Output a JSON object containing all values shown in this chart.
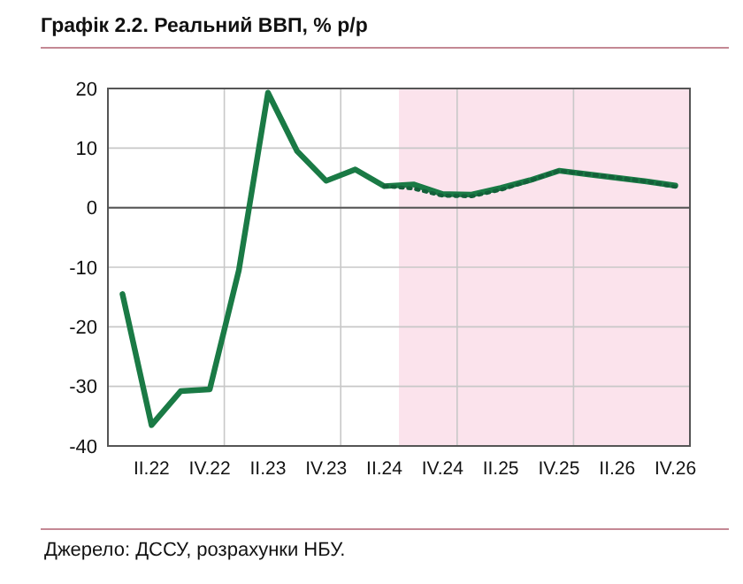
{
  "chart_data": {
    "type": "line",
    "title": "Графік 2.2. Реальний ВВП, % р/р",
    "categories": [
      null,
      "II.22",
      null,
      "IV.22",
      null,
      "II.23",
      null,
      "IV.23",
      null,
      "II.24",
      null,
      "IV.24",
      null,
      "II.25",
      null,
      "IV.25",
      null,
      "II.26",
      null,
      "IV.26"
    ],
    "series": [
      {
        "color": "#1a7a45",
        "line_style": "solid",
        "values": [
          -14.5,
          -36.5,
          -30.8,
          -30.5,
          -10.5,
          19.3,
          9.5,
          4.5,
          6.4,
          3.6,
          3.9,
          2.3,
          2.2,
          3.3,
          4.6,
          6.2,
          5.6,
          5.0,
          4.4,
          3.7
        ]
      },
      {
        "color": "#14603a",
        "line_style": "dotted",
        "values": [
          null,
          null,
          null,
          null,
          null,
          null,
          null,
          null,
          null,
          3.6,
          3.2,
          2.0,
          1.9,
          3.0,
          4.5,
          6.2,
          5.6,
          5.0,
          4.4,
          3.5
        ]
      }
    ],
    "ylim": [
      -40,
      20
    ],
    "yticks": [
      -40,
      -30,
      -20,
      -10,
      0,
      10,
      20
    ],
    "grid": true,
    "bands": [
      {
        "axis": "x",
        "from": "II.24",
        "to": "IV.26",
        "color": "#fbe3ec"
      }
    ],
    "annotations": [
      "Джерело: ДССУ, розрахунки НБУ."
    ]
  }
}
